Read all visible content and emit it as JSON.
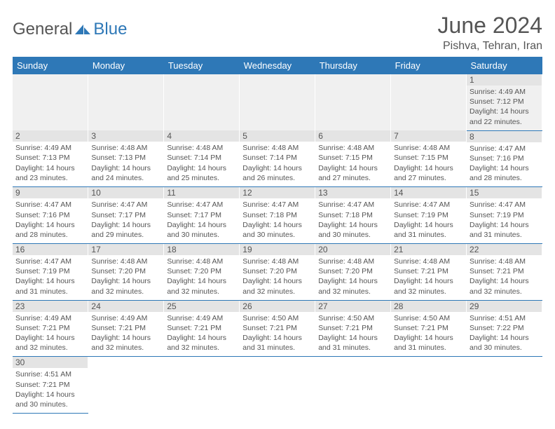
{
  "logo": {
    "part1": "General",
    "part2": "Blue"
  },
  "title": "June 2024",
  "location": "Pishva, Tehran, Iran",
  "weekdays": [
    "Sunday",
    "Monday",
    "Tuesday",
    "Wednesday",
    "Thursday",
    "Friday",
    "Saturday"
  ],
  "colors": {
    "header_bg": "#2e78b7",
    "header_fg": "#ffffff",
    "daynum_bg": "#e4e4e4",
    "row_border": "#2e78b7",
    "text": "#555555"
  },
  "weeks": [
    [
      null,
      null,
      null,
      null,
      null,
      null,
      {
        "n": "1",
        "sr": "Sunrise: 4:49 AM",
        "ss": "Sunset: 7:12 PM",
        "dl": "Daylight: 14 hours and 22 minutes."
      }
    ],
    [
      {
        "n": "2",
        "sr": "Sunrise: 4:49 AM",
        "ss": "Sunset: 7:13 PM",
        "dl": "Daylight: 14 hours and 23 minutes."
      },
      {
        "n": "3",
        "sr": "Sunrise: 4:48 AM",
        "ss": "Sunset: 7:13 PM",
        "dl": "Daylight: 14 hours and 24 minutes."
      },
      {
        "n": "4",
        "sr": "Sunrise: 4:48 AM",
        "ss": "Sunset: 7:14 PM",
        "dl": "Daylight: 14 hours and 25 minutes."
      },
      {
        "n": "5",
        "sr": "Sunrise: 4:48 AM",
        "ss": "Sunset: 7:14 PM",
        "dl": "Daylight: 14 hours and 26 minutes."
      },
      {
        "n": "6",
        "sr": "Sunrise: 4:48 AM",
        "ss": "Sunset: 7:15 PM",
        "dl": "Daylight: 14 hours and 27 minutes."
      },
      {
        "n": "7",
        "sr": "Sunrise: 4:48 AM",
        "ss": "Sunset: 7:15 PM",
        "dl": "Daylight: 14 hours and 27 minutes."
      },
      {
        "n": "8",
        "sr": "Sunrise: 4:47 AM",
        "ss": "Sunset: 7:16 PM",
        "dl": "Daylight: 14 hours and 28 minutes."
      }
    ],
    [
      {
        "n": "9",
        "sr": "Sunrise: 4:47 AM",
        "ss": "Sunset: 7:16 PM",
        "dl": "Daylight: 14 hours and 28 minutes."
      },
      {
        "n": "10",
        "sr": "Sunrise: 4:47 AM",
        "ss": "Sunset: 7:17 PM",
        "dl": "Daylight: 14 hours and 29 minutes."
      },
      {
        "n": "11",
        "sr": "Sunrise: 4:47 AM",
        "ss": "Sunset: 7:17 PM",
        "dl": "Daylight: 14 hours and 30 minutes."
      },
      {
        "n": "12",
        "sr": "Sunrise: 4:47 AM",
        "ss": "Sunset: 7:18 PM",
        "dl": "Daylight: 14 hours and 30 minutes."
      },
      {
        "n": "13",
        "sr": "Sunrise: 4:47 AM",
        "ss": "Sunset: 7:18 PM",
        "dl": "Daylight: 14 hours and 30 minutes."
      },
      {
        "n": "14",
        "sr": "Sunrise: 4:47 AM",
        "ss": "Sunset: 7:19 PM",
        "dl": "Daylight: 14 hours and 31 minutes."
      },
      {
        "n": "15",
        "sr": "Sunrise: 4:47 AM",
        "ss": "Sunset: 7:19 PM",
        "dl": "Daylight: 14 hours and 31 minutes."
      }
    ],
    [
      {
        "n": "16",
        "sr": "Sunrise: 4:47 AM",
        "ss": "Sunset: 7:19 PM",
        "dl": "Daylight: 14 hours and 31 minutes."
      },
      {
        "n": "17",
        "sr": "Sunrise: 4:48 AM",
        "ss": "Sunset: 7:20 PM",
        "dl": "Daylight: 14 hours and 32 minutes."
      },
      {
        "n": "18",
        "sr": "Sunrise: 4:48 AM",
        "ss": "Sunset: 7:20 PM",
        "dl": "Daylight: 14 hours and 32 minutes."
      },
      {
        "n": "19",
        "sr": "Sunrise: 4:48 AM",
        "ss": "Sunset: 7:20 PM",
        "dl": "Daylight: 14 hours and 32 minutes."
      },
      {
        "n": "20",
        "sr": "Sunrise: 4:48 AM",
        "ss": "Sunset: 7:20 PM",
        "dl": "Daylight: 14 hours and 32 minutes."
      },
      {
        "n": "21",
        "sr": "Sunrise: 4:48 AM",
        "ss": "Sunset: 7:21 PM",
        "dl": "Daylight: 14 hours and 32 minutes."
      },
      {
        "n": "22",
        "sr": "Sunrise: 4:48 AM",
        "ss": "Sunset: 7:21 PM",
        "dl": "Daylight: 14 hours and 32 minutes."
      }
    ],
    [
      {
        "n": "23",
        "sr": "Sunrise: 4:49 AM",
        "ss": "Sunset: 7:21 PM",
        "dl": "Daylight: 14 hours and 32 minutes."
      },
      {
        "n": "24",
        "sr": "Sunrise: 4:49 AM",
        "ss": "Sunset: 7:21 PM",
        "dl": "Daylight: 14 hours and 32 minutes."
      },
      {
        "n": "25",
        "sr": "Sunrise: 4:49 AM",
        "ss": "Sunset: 7:21 PM",
        "dl": "Daylight: 14 hours and 32 minutes."
      },
      {
        "n": "26",
        "sr": "Sunrise: 4:50 AM",
        "ss": "Sunset: 7:21 PM",
        "dl": "Daylight: 14 hours and 31 minutes."
      },
      {
        "n": "27",
        "sr": "Sunrise: 4:50 AM",
        "ss": "Sunset: 7:21 PM",
        "dl": "Daylight: 14 hours and 31 minutes."
      },
      {
        "n": "28",
        "sr": "Sunrise: 4:50 AM",
        "ss": "Sunset: 7:21 PM",
        "dl": "Daylight: 14 hours and 31 minutes."
      },
      {
        "n": "29",
        "sr": "Sunrise: 4:51 AM",
        "ss": "Sunset: 7:22 PM",
        "dl": "Daylight: 14 hours and 30 minutes."
      }
    ],
    [
      {
        "n": "30",
        "sr": "Sunrise: 4:51 AM",
        "ss": "Sunset: 7:21 PM",
        "dl": "Daylight: 14 hours and 30 minutes."
      },
      null,
      null,
      null,
      null,
      null,
      null
    ]
  ]
}
